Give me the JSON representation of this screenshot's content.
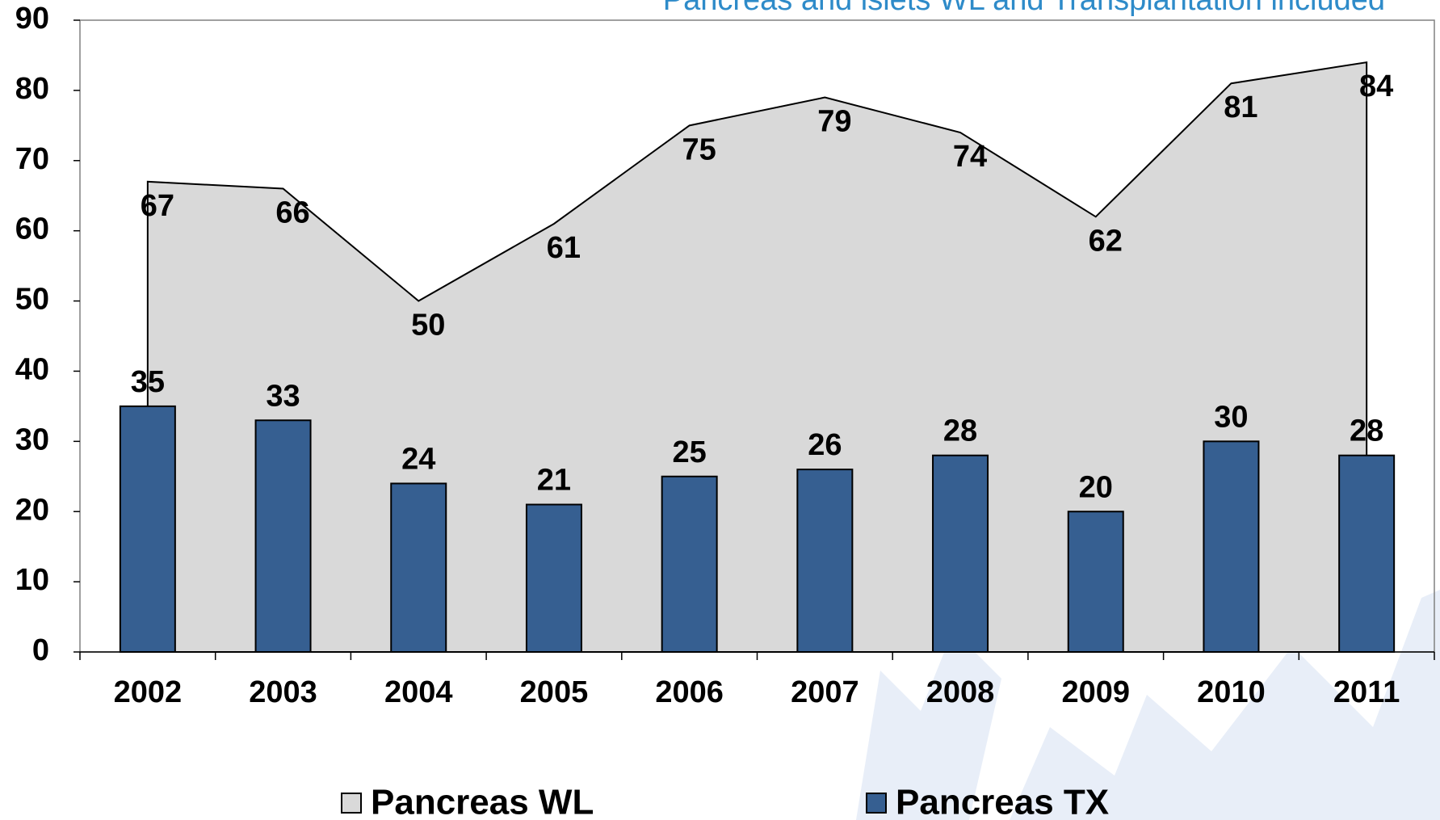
{
  "chart_data": {
    "type": "bar",
    "title": "Pancreas and islets WL and Transplantation included",
    "categories": [
      "2002",
      "2003",
      "2004",
      "2005",
      "2006",
      "2007",
      "2008",
      "2009",
      "2010",
      "2011"
    ],
    "series": [
      {
        "name": "Pancreas WL",
        "type": "area",
        "color": "#d9d9d9",
        "values": [
          67,
          66,
          50,
          61,
          75,
          79,
          74,
          62,
          81,
          84
        ]
      },
      {
        "name": "Pancreas TX",
        "type": "bar",
        "color": "#365f91",
        "values": [
          35,
          33,
          24,
          21,
          25,
          26,
          28,
          20,
          30,
          28
        ]
      }
    ],
    "ylim": [
      0,
      90
    ],
    "yticks": [
      0,
      10,
      20,
      30,
      40,
      50,
      60,
      70,
      80,
      90
    ],
    "legend": "bottom"
  }
}
